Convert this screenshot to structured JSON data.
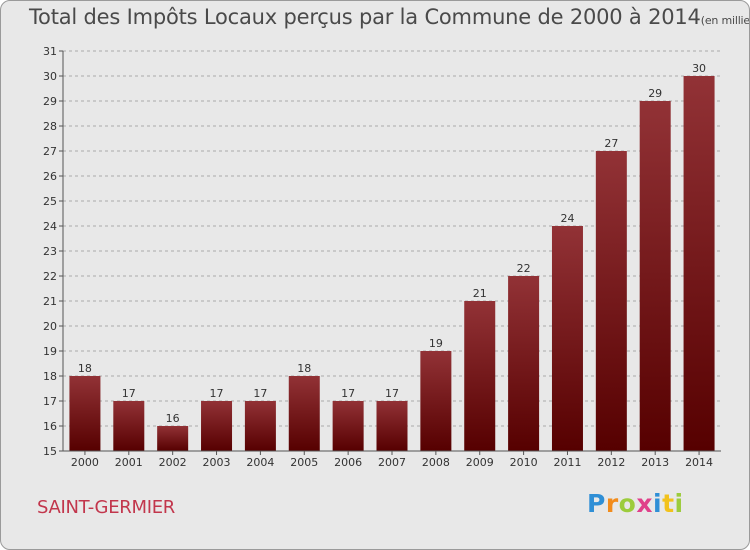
{
  "title": "Total des Impôts Locaux perçus par la Commune de 2000 à 2014",
  "subtitle": "(en milliers d'€)",
  "commune": "SAINT-GERMIER",
  "logo": {
    "text": "Proxiti",
    "letters": [
      {
        "ch": "P",
        "color": "#2f8fd6"
      },
      {
        "ch": "r",
        "color": "#f28c1c"
      },
      {
        "ch": "o",
        "color": "#9ccc3c"
      },
      {
        "ch": "x",
        "color": "#e0408a"
      },
      {
        "ch": "i",
        "color": "#2f8fd6"
      },
      {
        "ch": "t",
        "color": "#f2c21c"
      },
      {
        "ch": "i",
        "color": "#9ccc3c"
      }
    ]
  },
  "colors": {
    "bar_top": "#923236",
    "bar_bottom": "#560000",
    "grid": "#aaaaaa",
    "plot_bg": "#e8e8e8"
  },
  "chart_data": {
    "type": "bar",
    "categories": [
      "2000",
      "2001",
      "2002",
      "2003",
      "2004",
      "2005",
      "2006",
      "2007",
      "2008",
      "2009",
      "2010",
      "2011",
      "2012",
      "2013",
      "2014"
    ],
    "values": [
      18,
      17,
      16,
      17,
      17,
      18,
      17,
      17,
      19,
      21,
      22,
      24,
      27,
      29,
      30
    ],
    "ylim": [
      15,
      31
    ],
    "yticks": [
      15,
      16,
      17,
      18,
      19,
      20,
      21,
      22,
      23,
      24,
      25,
      26,
      27,
      28,
      29,
      30,
      31
    ],
    "grid": true,
    "legend": "none"
  }
}
